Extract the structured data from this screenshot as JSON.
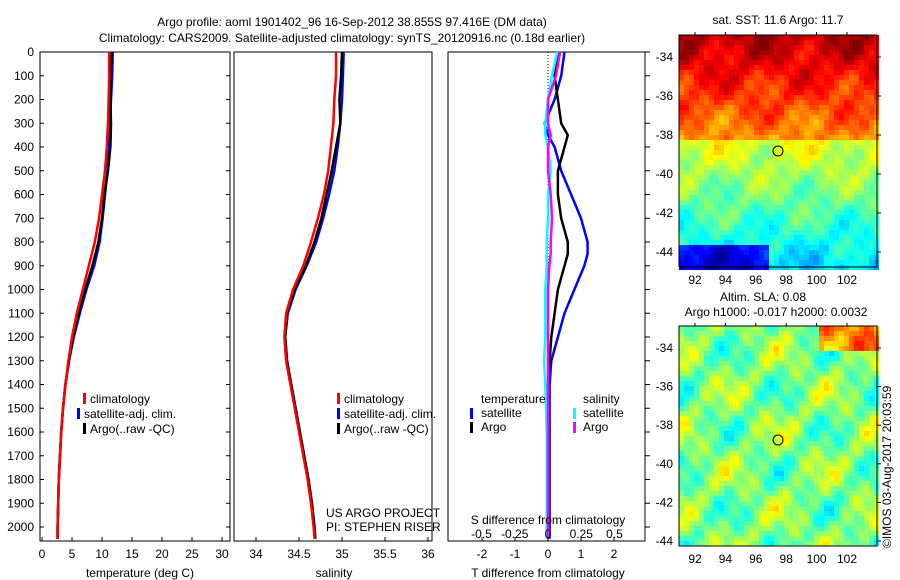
{
  "title_line1": "Argo profile: aoml 1901402_96 16-Sep-2012 38.855S 97.416E (DM data)",
  "title_line2": "Climatology: CARS2009. Satellite-adjusted climatology: synTS_20120916.nc (0.18d earlier)",
  "credit": "©IMOS 03-Aug-2017 20:03:59",
  "project": "US ARGO PROJECT",
  "pi": "PI: STEPHEN RISER",
  "colors": {
    "climatology": "#ff0000",
    "satellite": "#0000ff",
    "argo": "#000000",
    "s_satellite": "#00ffff",
    "s_argo": "#ff00ff"
  },
  "chart_data": [
    {
      "type": "line",
      "xlabel": "temperature (deg C)",
      "ylabel": "depth",
      "xlim": [
        -2,
        31
      ],
      "ylim": [
        2050,
        0
      ],
      "xticks": [
        "0",
        "5",
        "10",
        "15",
        "20",
        "25",
        "30"
      ],
      "yticks": [
        "0",
        "100",
        "200",
        "300",
        "400",
        "500",
        "600",
        "700",
        "800",
        "900",
        "1000",
        "1100",
        "1200",
        "1300",
        "1400",
        "1500",
        "1600",
        "1700",
        "1800",
        "1900",
        "2000"
      ],
      "legend": [
        "climatology",
        "satellite-adj. clim.",
        "Argo(..raw -QC)"
      ],
      "depth": [
        0,
        100,
        200,
        300,
        400,
        500,
        600,
        700,
        800,
        900,
        1000,
        1100,
        1200,
        1300,
        1400,
        1500,
        1600,
        1700,
        1800,
        1900,
        2000,
        2050
      ],
      "series": [
        {
          "name": "climatology",
          "values": [
            11.2,
            11.2,
            11.1,
            11.0,
            10.8,
            10.5,
            10.0,
            9.5,
            8.8,
            7.8,
            6.8,
            5.8,
            5.0,
            4.4,
            3.9,
            3.5,
            3.2,
            3.0,
            2.8,
            2.7,
            2.6,
            2.6
          ]
        },
        {
          "name": "satellite-adj. clim.",
          "values": [
            11.8,
            11.7,
            11.5,
            11.3,
            11.1,
            10.9,
            10.5,
            10.1,
            9.6,
            8.7,
            7.4,
            6.3,
            5.3,
            4.5,
            3.9,
            3.5,
            3.2,
            3.0,
            2.8,
            2.7,
            2.6,
            2.6
          ]
        },
        {
          "name": "Argo(..raw -QC)",
          "values": [
            11.6,
            11.5,
            11.4,
            11.5,
            11.4,
            11.0,
            10.4,
            10.0,
            9.4,
            8.4,
            7.2,
            6.1,
            5.2,
            4.5,
            3.9,
            3.5,
            3.2,
            3.0,
            2.8,
            2.7,
            2.6,
            2.6
          ]
        }
      ]
    },
    {
      "type": "line",
      "xlabel": "salinity",
      "xlim": [
        33.75,
        36.2
      ],
      "ylim": [
        2050,
        0
      ],
      "xticks": [
        "34",
        "34.5",
        "35",
        "35.5",
        "36"
      ],
      "legend": [
        "climatology",
        "satellite-adj. clim.",
        "Argo(..raw -QC)"
      ],
      "depth": [
        0,
        100,
        200,
        300,
        400,
        500,
        600,
        700,
        800,
        900,
        1000,
        1100,
        1200,
        1300,
        1400,
        1500,
        1600,
        1700,
        1800,
        1900,
        2000,
        2050
      ],
      "series": [
        {
          "name": "climatology",
          "values": [
            34.93,
            34.93,
            34.91,
            34.9,
            34.87,
            34.84,
            34.79,
            34.72,
            34.64,
            34.55,
            34.43,
            34.35,
            34.33,
            34.35,
            34.4,
            34.45,
            34.5,
            34.55,
            34.6,
            34.64,
            34.67,
            34.68
          ]
        },
        {
          "name": "satellite-adj. clim.",
          "values": [
            35.02,
            35.01,
            35.0,
            34.98,
            34.95,
            34.91,
            34.85,
            34.78,
            34.7,
            34.59,
            34.46,
            34.37,
            34.34,
            34.36,
            34.41,
            34.46,
            34.51,
            34.56,
            34.61,
            34.65,
            34.68,
            34.69
          ]
        },
        {
          "name": "Argo(..raw -QC)",
          "values": [
            35.0,
            34.99,
            34.97,
            34.98,
            34.93,
            34.88,
            34.82,
            34.76,
            34.68,
            34.58,
            34.45,
            34.36,
            34.34,
            34.36,
            34.41,
            34.46,
            34.51,
            34.56,
            34.61,
            34.65,
            34.68,
            34.69
          ]
        }
      ]
    },
    {
      "type": "line",
      "xlabel": "T difference from climatology",
      "x2label": "S difference from climatology",
      "xlim": [
        -3,
        3
      ],
      "ylim": [
        2050,
        0
      ],
      "xticks": [
        "-2",
        "-1",
        "0",
        "1",
        "2"
      ],
      "x2ticks": [
        "-0.5",
        "-0.25",
        "0",
        "0.25",
        "0.5"
      ],
      "legend_temperature": {
        "title": "temperature",
        "items": [
          "satellite",
          "Argo"
        ]
      },
      "legend_salinity": {
        "title": "salinity",
        "items": [
          "satellite",
          "Argo"
        ]
      },
      "depth": [
        0,
        100,
        200,
        300,
        350,
        400,
        500,
        600,
        700,
        800,
        850,
        900,
        1000,
        1100,
        1200,
        1300,
        1400,
        1600,
        1800,
        2000,
        2050
      ],
      "series": [
        {
          "name": "T satellite",
          "values": [
            0.5,
            0.4,
            0.2,
            -0.1,
            0.0,
            0.2,
            0.4,
            0.7,
            1.0,
            1.2,
            1.2,
            1.1,
            0.8,
            0.5,
            0.3,
            0.1,
            0.05,
            0.05,
            0.05,
            0.05,
            0.05
          ]
        },
        {
          "name": "T Argo",
          "values": [
            0.3,
            0.2,
            0.3,
            0.4,
            0.6,
            0.5,
            0.3,
            0.3,
            0.4,
            0.6,
            0.6,
            0.5,
            0.3,
            0.2,
            0.1,
            0.05,
            0.0,
            0.0,
            0.0,
            0.0,
            0.0
          ]
        },
        {
          "name": "S satellite",
          "values": [
            0.07,
            0.03,
            0.0,
            -0.02,
            -0.02,
            0.0,
            0.02,
            0.0,
            0.0,
            -0.01,
            -0.01,
            -0.01,
            -0.02,
            -0.02,
            -0.02,
            -0.03,
            -0.02,
            -0.01,
            -0.01,
            -0.01,
            -0.01
          ]
        },
        {
          "name": "S Argo",
          "values": [
            0.09,
            0.06,
            0.0,
            0.0,
            0.02,
            0.0,
            0.0,
            0.02,
            0.03,
            0.02,
            0.02,
            0.01,
            0.0,
            0.0,
            0.0,
            0.0,
            0.0,
            0.0,
            0.0,
            0.0,
            0.0
          ]
        }
      ]
    },
    {
      "type": "heatmap",
      "title": "sat. SST: 11.6 Argo: 11.7",
      "xticks": [
        "92",
        "94",
        "96",
        "98",
        "100",
        "102"
      ],
      "yticks": [
        "-34",
        "-36",
        "-38",
        "-40",
        "-42",
        "-44"
      ],
      "argo_position": [
        97.416,
        -38.855
      ]
    },
    {
      "type": "heatmap",
      "title": "Altim. SLA: 0.08",
      "subtitle": "Argo h1000: -0.017 h2000: 0.0032",
      "xticks": [
        "92",
        "94",
        "96",
        "98",
        "100",
        "102"
      ],
      "yticks": [
        "-34",
        "-36",
        "-38",
        "-40",
        "-42",
        "-44"
      ],
      "argo_position": [
        97.416,
        -38.855
      ]
    }
  ]
}
